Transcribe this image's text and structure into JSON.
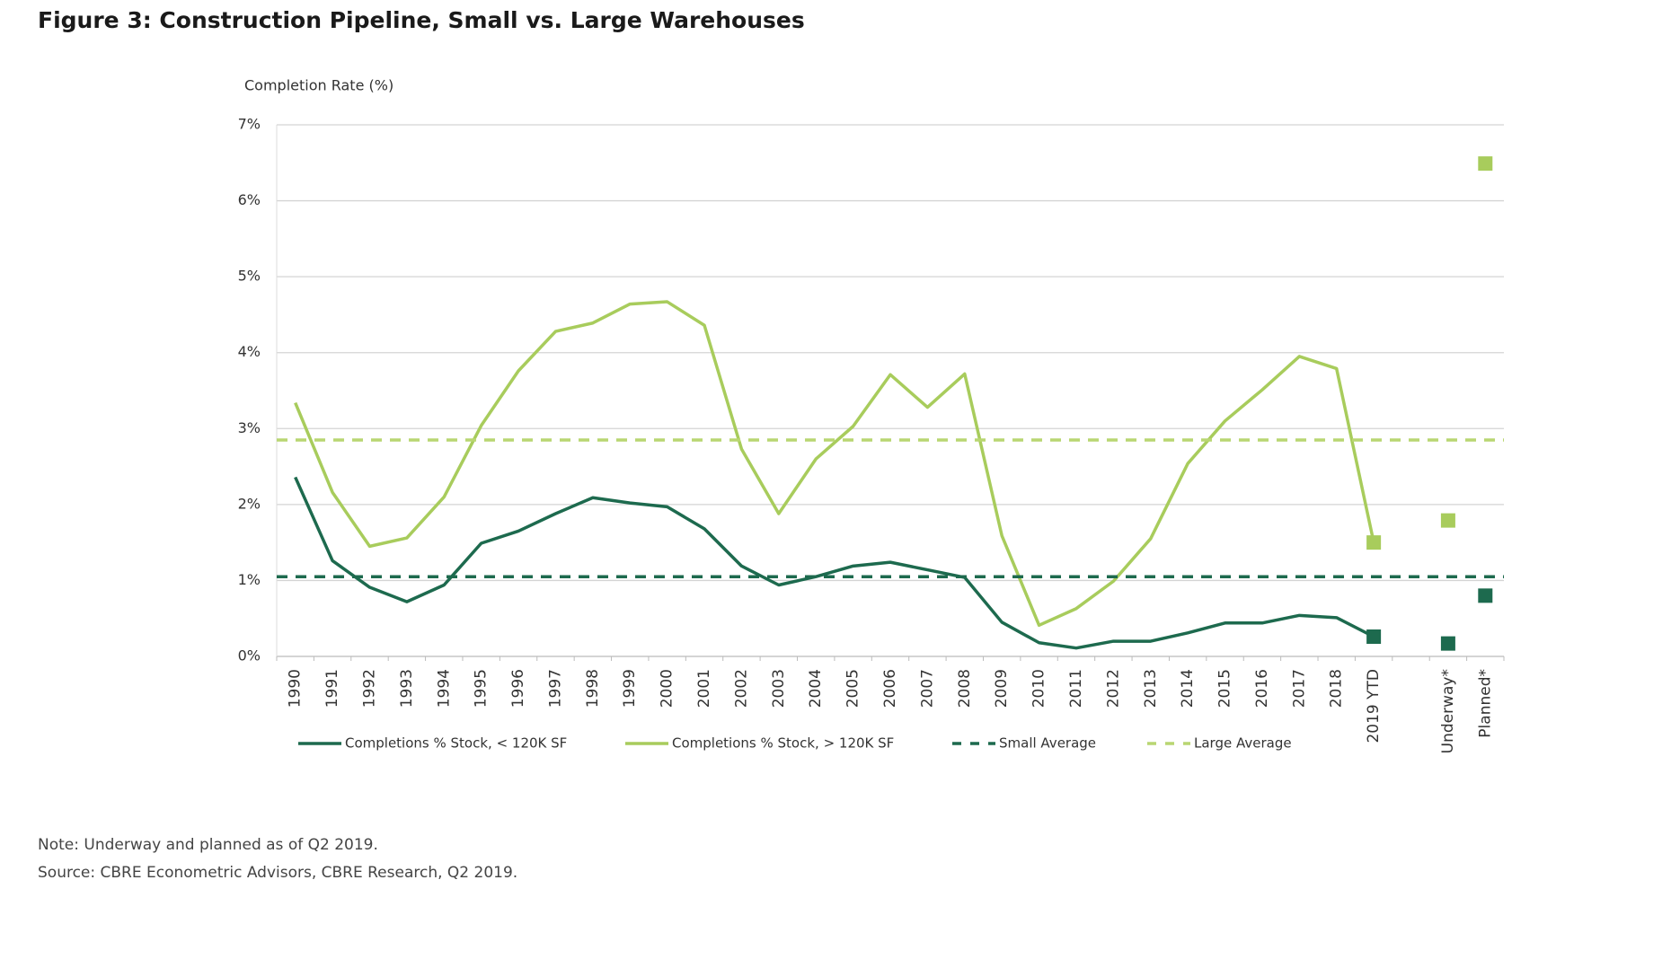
{
  "chart_data": {
    "type": "line",
    "title": "Figure 3: Construction Pipeline, Small vs. Large Warehouses",
    "y_label": "Completion Rate (%)",
    "categories": [
      "1990",
      "1991",
      "1992",
      "1993",
      "1994",
      "1995",
      "1996",
      "1997",
      "1998",
      "1999",
      "2000",
      "2001",
      "2002",
      "2003",
      "2004",
      "2005",
      "2006",
      "2007",
      "2008",
      "2009",
      "2010",
      "2011",
      "2012",
      "2013",
      "2014",
      "2015",
      "2016",
      "2017",
      "2018",
      "2019 YTD",
      null,
      "Underway*",
      "Planned*"
    ],
    "line_ends_at": "2019 YTD",
    "markers": "square",
    "series": [
      {
        "name": "Completions % Stock, < 120K SF",
        "color": "#1d6a4e",
        "values": [
          2.36,
          1.26,
          0.91,
          0.72,
          0.94,
          1.49,
          1.65,
          1.88,
          2.09,
          2.02,
          1.97,
          1.68,
          1.19,
          0.94,
          1.05,
          1.19,
          1.24,
          1.14,
          1.04,
          0.45,
          0.18,
          0.11,
          0.2,
          0.2,
          0.31,
          0.44,
          0.44,
          0.54,
          0.51,
          0.26,
          null,
          0.17,
          0.8
        ]
      },
      {
        "name": "Completions % Stock, > 120K SF",
        "color": "#a8cc5c",
        "values": [
          3.34,
          2.16,
          1.45,
          1.56,
          2.1,
          3.04,
          3.76,
          4.28,
          4.39,
          4.64,
          4.67,
          4.36,
          2.73,
          1.88,
          2.6,
          3.03,
          3.71,
          3.28,
          3.72,
          1.59,
          0.41,
          0.63,
          0.99,
          1.55,
          2.54,
          3.1,
          3.51,
          3.95,
          3.79,
          1.5,
          null,
          1.79,
          6.49
        ]
      },
      {
        "name": "Small Average",
        "color": "#1d6a4e",
        "dash": true,
        "value": 1.05
      },
      {
        "name": "Large Average",
        "color": "#b9d672",
        "dash": true,
        "value": 2.85
      }
    ],
    "ylim": [
      0,
      7
    ],
    "yticks": [
      {
        "value": 0,
        "label": "0%"
      },
      {
        "value": 1,
        "label": "1%"
      },
      {
        "value": 2,
        "label": "2%"
      },
      {
        "value": 3,
        "label": "3%"
      },
      {
        "value": 4,
        "label": "4%"
      },
      {
        "value": 5,
        "label": "5%"
      },
      {
        "value": 6,
        "label": "6%"
      },
      {
        "value": 7,
        "label": "7%"
      }
    ],
    "grid": true,
    "notes": [
      "Note: Underway and planned as of Q2 2019.",
      "Source: CBRE Econometric Advisors, CBRE Research, Q2 2019."
    ]
  }
}
